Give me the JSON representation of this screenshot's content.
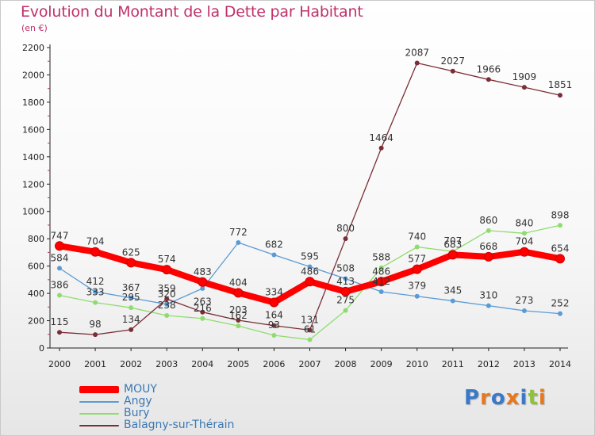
{
  "page": {
    "title": "Evolution du Montant de la Dette par Habitant",
    "unit": "(en €)",
    "logo": "Proxiti"
  },
  "chart_data": {
    "type": "line",
    "title": "Evolution du Montant de la Dette par Habitant",
    "subtitle": "(en €)",
    "x": [
      "2000",
      "2001",
      "2002",
      "2003",
      "2004",
      "2005",
      "2006",
      "2007",
      "2008",
      "2009",
      "2010",
      "2011",
      "2012",
      "2013",
      "2014"
    ],
    "ylim": [
      0,
      2200
    ],
    "yticks": [
      "0",
      "200",
      "400",
      "600",
      "800",
      "1000",
      "1200",
      "1400",
      "1600",
      "1800",
      "2000",
      "2200"
    ],
    "grid": false,
    "legend_position": "bottom-left",
    "series": [
      {
        "name": "MOUY",
        "color": "#ff0000",
        "bold": true,
        "values": [
          747,
          704,
          625,
          574,
          483,
          404,
          334,
          486,
          413,
          486,
          577,
          683,
          668,
          704,
          654
        ]
      },
      {
        "name": "Angy",
        "color": "#5b9bd5",
        "values": [
          584,
          412,
          367,
          320,
          436,
          772,
          682,
          595,
          508,
          412,
          379,
          345,
          310,
          273,
          252
        ]
      },
      {
        "name": "Bury",
        "color": "#8fdc6e",
        "values": [
          386,
          333,
          295,
          238,
          216,
          162,
          93,
          61,
          275,
          588,
          740,
          707,
          860,
          840,
          898
        ]
      },
      {
        "name": "Balagny-sur-Thérain",
        "color": "#7a2e36",
        "values": [
          115,
          98,
          134,
          359,
          263,
          203,
          164,
          131,
          800,
          1464,
          2087,
          2027,
          1966,
          1909,
          1851
        ]
      }
    ],
    "labels": [
      [
        "747",
        "704",
        "625",
        "574",
        "483",
        "404",
        "334",
        "486",
        "413",
        "486",
        "577",
        "683",
        "668",
        "704",
        "654"
      ],
      [
        "584",
        "412",
        "367",
        "320",
        "",
        "772",
        "682",
        "595",
        "508",
        "412",
        "379",
        "345",
        "310",
        "273",
        "252"
      ],
      [
        "386",
        "333",
        "295",
        "238",
        "216",
        "162",
        "93",
        "61",
        "275",
        "588",
        "740",
        "707",
        "860",
        "840",
        "898"
      ],
      [
        "115",
        "98",
        "134",
        "359",
        "263",
        "203",
        "164",
        "131",
        "800",
        "1464",
        "2087",
        "2027",
        "1966",
        "1909",
        "1851"
      ]
    ]
  },
  "legend": {
    "items": [
      {
        "label": "MOUY",
        "color": "#ff0000"
      },
      {
        "label": "Angy",
        "color": "#5b9bd5"
      },
      {
        "label": "Bury",
        "color": "#8fdc6e"
      },
      {
        "label": "Balagny-sur-Thérain",
        "color": "#7a2e36"
      }
    ]
  }
}
